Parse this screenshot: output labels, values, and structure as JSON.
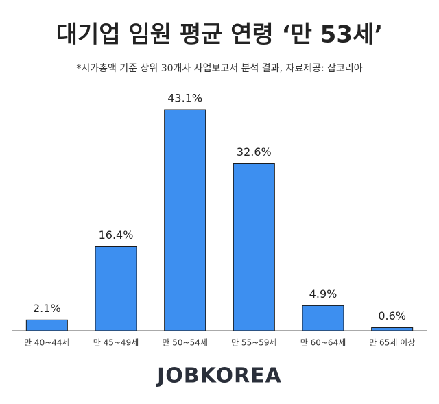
{
  "chart_data": {
    "type": "bar",
    "title": "대기업 임원 평균 연령 ‘만 53세’",
    "subtitle": "*시가총액 기준 상위 30개사 사업보고서 분석 결과, 자료제공: 잡코리아",
    "categories": [
      "만 40~44세",
      "만 45~49세",
      "만 50~54세",
      "만 55~59세",
      "만 60~64세",
      "만 65세 이상"
    ],
    "values": [
      2.1,
      16.4,
      43.1,
      32.6,
      4.9,
      0.6
    ],
    "value_labels": [
      "2.1%",
      "16.4%",
      "43.1%",
      "32.6%",
      "4.9%",
      "0.6%"
    ],
    "color": "#3d8ff0",
    "logo": "JOBKOREA"
  }
}
